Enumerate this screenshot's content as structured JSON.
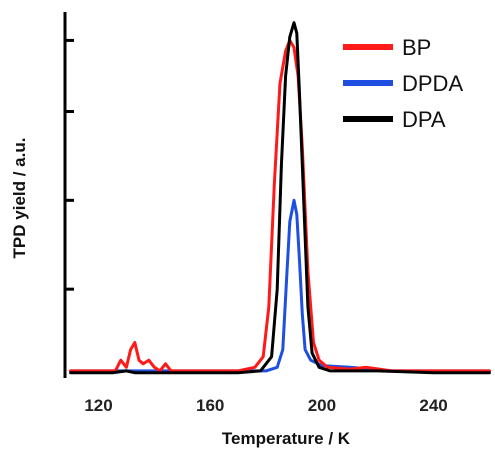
{
  "chart_data": {
    "type": "line",
    "title": "",
    "xlabel": "Temperature / K",
    "ylabel": "TPD yield / a.u.",
    "xlim": [
      108,
      262
    ],
    "ylim": [
      0,
      1.03
    ],
    "x_ticks": [
      120,
      160,
      200,
      240
    ],
    "y_ticks": [
      0.25,
      0.5,
      0.75,
      0.95
    ],
    "y_tick_labels_shown": false,
    "grid": false,
    "legend_position": "top-right",
    "series": [
      {
        "name": "BP",
        "color": "#ff1a1a",
        "points": [
          [
            110,
            0.02
          ],
          [
            120,
            0.02
          ],
          [
            126,
            0.02
          ],
          [
            128,
            0.05
          ],
          [
            130,
            0.03
          ],
          [
            131.5,
            0.08
          ],
          [
            133,
            0.1
          ],
          [
            134.5,
            0.05
          ],
          [
            136,
            0.04
          ],
          [
            138,
            0.05
          ],
          [
            140,
            0.03
          ],
          [
            142,
            0.02
          ],
          [
            144,
            0.04
          ],
          [
            146,
            0.02
          ],
          [
            150,
            0.02
          ],
          [
            160,
            0.02
          ],
          [
            170,
            0.02
          ],
          [
            176,
            0.03
          ],
          [
            179,
            0.06
          ],
          [
            181,
            0.2
          ],
          [
            183,
            0.55
          ],
          [
            185,
            0.83
          ],
          [
            187,
            0.92
          ],
          [
            188.5,
            0.95
          ],
          [
            190,
            0.93
          ],
          [
            191.5,
            0.85
          ],
          [
            193,
            0.65
          ],
          [
            195,
            0.3
          ],
          [
            197,
            0.1
          ],
          [
            199,
            0.05
          ],
          [
            202,
            0.03
          ],
          [
            210,
            0.025
          ],
          [
            216,
            0.03
          ],
          [
            225,
            0.02
          ],
          [
            240,
            0.02
          ],
          [
            260,
            0.02
          ]
        ]
      },
      {
        "name": "DPDA",
        "color": "#1f4fe0",
        "points": [
          [
            110,
            0.02
          ],
          [
            150,
            0.02
          ],
          [
            170,
            0.02
          ],
          [
            180,
            0.02
          ],
          [
            184,
            0.03
          ],
          [
            186,
            0.08
          ],
          [
            187.5,
            0.3
          ],
          [
            188.5,
            0.44
          ],
          [
            190,
            0.5
          ],
          [
            191,
            0.46
          ],
          [
            192,
            0.33
          ],
          [
            193,
            0.18
          ],
          [
            194,
            0.08
          ],
          [
            196,
            0.05
          ],
          [
            200,
            0.035
          ],
          [
            210,
            0.03
          ],
          [
            225,
            0.02
          ],
          [
            260,
            0.02
          ]
        ]
      },
      {
        "name": "DPA",
        "color": "#000000",
        "points": [
          [
            110,
            0.015
          ],
          [
            125,
            0.015
          ],
          [
            130,
            0.02
          ],
          [
            133,
            0.015
          ],
          [
            150,
            0.015
          ],
          [
            170,
            0.015
          ],
          [
            178,
            0.02
          ],
          [
            182,
            0.06
          ],
          [
            184,
            0.25
          ],
          [
            185.5,
            0.6
          ],
          [
            187,
            0.85
          ],
          [
            188.5,
            0.96
          ],
          [
            190,
            1.0
          ],
          [
            191,
            0.97
          ],
          [
            192,
            0.8
          ],
          [
            193.5,
            0.5
          ],
          [
            195,
            0.2
          ],
          [
            196.5,
            0.07
          ],
          [
            199,
            0.03
          ],
          [
            203,
            0.02
          ],
          [
            220,
            0.02
          ],
          [
            240,
            0.015
          ],
          [
            260,
            0.015
          ]
        ]
      }
    ]
  }
}
